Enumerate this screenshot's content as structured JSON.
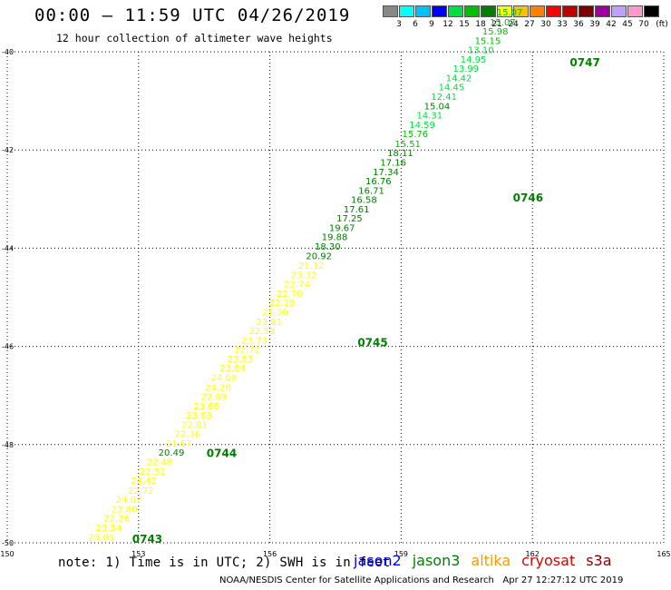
{
  "header": {
    "title": "00:00 – 11:59 UTC 04/26/2019",
    "subtitle": "12 hour collection of altimeter wave heights"
  },
  "colorbar": {
    "unit": "(ft)",
    "labels": [
      "3",
      "6",
      "9",
      "12",
      "15",
      "18",
      "21",
      "24",
      "27",
      "30",
      "33",
      "36",
      "39",
      "42",
      "45",
      "70"
    ],
    "colors": [
      "#888888",
      "#00ffff",
      "#00c0ff",
      "#0000ff",
      "#00e040",
      "#00c000",
      "#008000",
      "#ffff00",
      "#ffc000",
      "#ff8000",
      "#ff0000",
      "#c00000",
      "#800000",
      "#a000a0",
      "#c0a0ff",
      "#ff99cc",
      "#000000"
    ]
  },
  "footer": {
    "note": "note: 1) Time is in UTC; 2) SWH is in feet",
    "credit": "NOAA/NESDIS Center for Satellite Applications and Research   Apr 27 12:27:12 UTC 2019",
    "satellites": [
      {
        "name": "jason2",
        "color": "#0000ff"
      },
      {
        "name": "jason3",
        "color": "#008000"
      },
      {
        "name": "altika",
        "color": "#ff9900"
      },
      {
        "name": "cryosat",
        "color": "#dd0000"
      },
      {
        "name": "s3a",
        "color": "#880000"
      }
    ]
  },
  "chart_data": {
    "type": "scatter",
    "title": "12 hour collection of altimeter wave heights",
    "xlim": [
      150,
      165
    ],
    "ylim": [
      -50,
      -40
    ],
    "x_ticks": [
      "150",
      "153",
      "156",
      "159",
      "162",
      "165"
    ],
    "y_ticks": [
      "-40",
      "-42",
      "-44",
      "-46",
      "-48",
      "-50"
    ],
    "grid": true,
    "series": [
      {
        "name": "jason3",
        "color": "#008000",
        "points": [
          {
            "x": 152.15,
            "y": -49.95,
            "v": "23.05",
            "c": "#ffff00"
          },
          {
            "x": 152.32,
            "y": -49.76,
            "v": "23.54",
            "c": "#ffff00"
          },
          {
            "x": 152.5,
            "y": -49.57,
            "v": "22.26",
            "c": "#ffff00"
          },
          {
            "x": 152.68,
            "y": -49.38,
            "v": "22.80",
            "c": "#ffff00"
          },
          {
            "x": 152.78,
            "y": -49.19,
            "v": "24.07",
            "c": "#ffff00"
          },
          {
            "x": 153.05,
            "y": -49.0,
            "v": "22.72",
            "c": "#ffff00"
          },
          {
            "x": 153.12,
            "y": -48.8,
            "v": "24.42",
            "c": "#ffff00"
          },
          {
            "x": 153.32,
            "y": -48.61,
            "v": "22.52",
            "c": "#ffff00"
          },
          {
            "x": 153.48,
            "y": -48.42,
            "v": "22.48",
            "c": "#ffff00"
          },
          {
            "x": 153.75,
            "y": -48.23,
            "v": "20.49",
            "c": "#008000"
          },
          {
            "x": 153.92,
            "y": -48.04,
            "v": "21.67",
            "c": "#ffff00"
          },
          {
            "x": 154.12,
            "y": -47.85,
            "v": "22.36",
            "c": "#ffff00"
          },
          {
            "x": 154.28,
            "y": -47.66,
            "v": "22.81",
            "c": "#ffff00"
          },
          {
            "x": 154.38,
            "y": -47.47,
            "v": "23.83",
            "c": "#ffff00"
          },
          {
            "x": 154.55,
            "y": -47.28,
            "v": "23.66",
            "c": "#ffff00"
          },
          {
            "x": 154.72,
            "y": -47.09,
            "v": "22.89",
            "c": "#ffff00"
          },
          {
            "x": 154.82,
            "y": -46.9,
            "v": "24.20",
            "c": "#ffff00"
          },
          {
            "x": 154.95,
            "y": -46.7,
            "v": "24.09",
            "c": "#ffff00"
          },
          {
            "x": 155.15,
            "y": -46.51,
            "v": "23.84",
            "c": "#ffff00"
          },
          {
            "x": 155.32,
            "y": -46.32,
            "v": "23.83",
            "c": "#ffff00"
          },
          {
            "x": 155.48,
            "y": -46.13,
            "v": "22.72",
            "c": "#ffff00"
          },
          {
            "x": 155.65,
            "y": -45.94,
            "v": "23.73",
            "c": "#ffff00"
          },
          {
            "x": 155.82,
            "y": -45.75,
            "v": "22.53",
            "c": "#ffff00"
          },
          {
            "x": 155.98,
            "y": -45.56,
            "v": "23.81",
            "c": "#ffff00"
          },
          {
            "x": 156.12,
            "y": -45.37,
            "v": "21.30",
            "c": "#ffff00"
          },
          {
            "x": 156.28,
            "y": -45.18,
            "v": "22.19",
            "c": "#ffff00"
          },
          {
            "x": 156.45,
            "y": -44.99,
            "v": "22.70",
            "c": "#ffff00"
          },
          {
            "x": 156.62,
            "y": -44.8,
            "v": "22.74",
            "c": "#ffff00"
          },
          {
            "x": 156.78,
            "y": -44.61,
            "v": "23.32",
            "c": "#ffff00"
          },
          {
            "x": 156.95,
            "y": -44.42,
            "v": "21.12",
            "c": "#ffff00"
          },
          {
            "x": 157.12,
            "y": -44.22,
            "v": "20.92",
            "c": "#008000"
          },
          {
            "x": 157.32,
            "y": -44.03,
            "v": "18.30",
            "c": "#008000"
          },
          {
            "x": 157.48,
            "y": -43.84,
            "v": "19.88",
            "c": "#008000"
          },
          {
            "x": 157.65,
            "y": -43.65,
            "v": "19.67",
            "c": "#008000"
          },
          {
            "x": 157.82,
            "y": -43.46,
            "v": "17.25",
            "c": "#008000"
          },
          {
            "x": 157.98,
            "y": -43.27,
            "v": "17.61",
            "c": "#008000"
          },
          {
            "x": 158.15,
            "y": -43.08,
            "v": "16.58",
            "c": "#008000"
          },
          {
            "x": 158.32,
            "y": -42.89,
            "v": "16.71",
            "c": "#008000"
          },
          {
            "x": 158.48,
            "y": -42.7,
            "v": "16.76",
            "c": "#008000"
          },
          {
            "x": 158.65,
            "y": -42.51,
            "v": "17.34",
            "c": "#008000"
          },
          {
            "x": 158.82,
            "y": -42.32,
            "v": "17.16",
            "c": "#008000"
          },
          {
            "x": 158.98,
            "y": -42.13,
            "v": "18.11",
            "c": "#008000"
          },
          {
            "x": 159.15,
            "y": -41.94,
            "v": "15.51",
            "c": "#00c000"
          },
          {
            "x": 159.32,
            "y": -41.74,
            "v": "15.76",
            "c": "#00c000"
          },
          {
            "x": 159.48,
            "y": -41.55,
            "v": "14.59",
            "c": "#00e040"
          },
          {
            "x": 159.65,
            "y": -41.36,
            "v": "14.31",
            "c": "#00e040"
          },
          {
            "x": 159.82,
            "y": -41.17,
            "v": "15.04",
            "c": "#008000"
          },
          {
            "x": 159.98,
            "y": -40.98,
            "v": "12.41",
            "c": "#00e040"
          },
          {
            "x": 160.15,
            "y": -40.79,
            "v": "14.45",
            "c": "#00e040"
          },
          {
            "x": 160.32,
            "y": -40.6,
            "v": "14.42",
            "c": "#00e040"
          },
          {
            "x": 160.48,
            "y": -40.41,
            "v": "13.99",
            "c": "#00e040"
          },
          {
            "x": 160.65,
            "y": -40.22,
            "v": "14.95",
            "c": "#00e040"
          },
          {
            "x": 160.82,
            "y": -40.03,
            "v": "13.10",
            "c": "#00e040"
          },
          {
            "x": 160.98,
            "y": -39.84,
            "v": "15.15",
            "c": "#00c000"
          },
          {
            "x": 161.15,
            "y": -39.65,
            "v": "15.98",
            "c": "#00c000"
          },
          {
            "x": 161.32,
            "y": -39.46,
            "v": "15.07",
            "c": "#00c000"
          },
          {
            "x": 161.48,
            "y": -39.26,
            "v": "15.07",
            "c": "#00c000"
          }
        ]
      }
    ],
    "time_labels": [
      {
        "x": 153.2,
        "y": -50.0,
        "t": "0743",
        "c": "#008000"
      },
      {
        "x": 154.9,
        "y": -48.25,
        "t": "0744",
        "c": "#008000"
      },
      {
        "x": 158.35,
        "y": -46.0,
        "t": "0745",
        "c": "#008000"
      },
      {
        "x": 161.9,
        "y": -43.05,
        "t": "0746",
        "c": "#008000"
      },
      {
        "x": 163.2,
        "y": -40.3,
        "t": "0747",
        "c": "#008000"
      }
    ]
  }
}
